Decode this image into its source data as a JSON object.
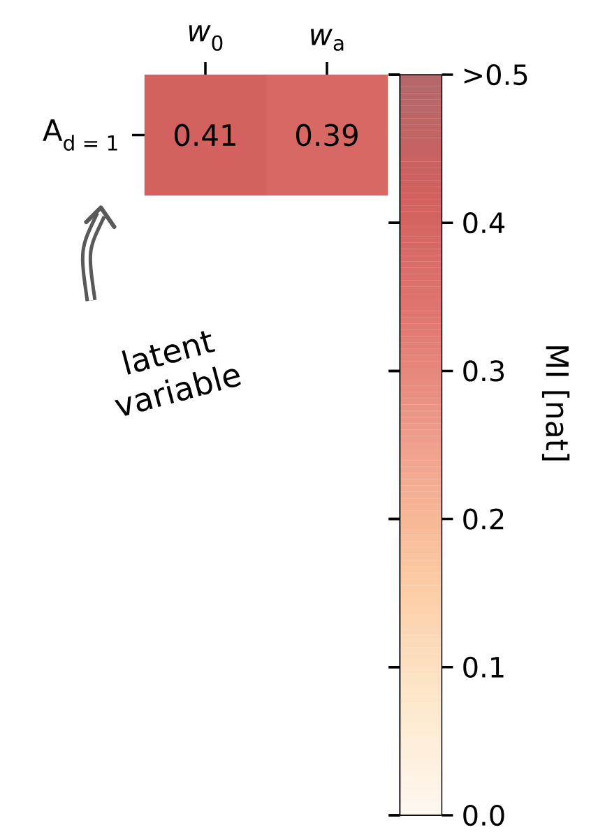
{
  "chart_data": {
    "type": "heatmap",
    "categories": [
      "*w*$_{0}$",
      "*w*$_{a}$"
    ],
    "y_categories": [
      "A$_{d = 1}$"
    ],
    "cells": [
      [
        0.41,
        0.39
      ]
    ],
    "data_labels": true,
    "clim": [
      0,
      0.5
    ],
    "cticks": [
      {
        "value": 0,
        "label": "0.0"
      },
      0.1,
      0.2,
      0.3,
      0.4,
      {
        "value": 0.5,
        "label": ">0.5"
      }
    ],
    "clabel": "MI [nat]",
    "annotations": [
      "latent variable"
    ]
  }
}
